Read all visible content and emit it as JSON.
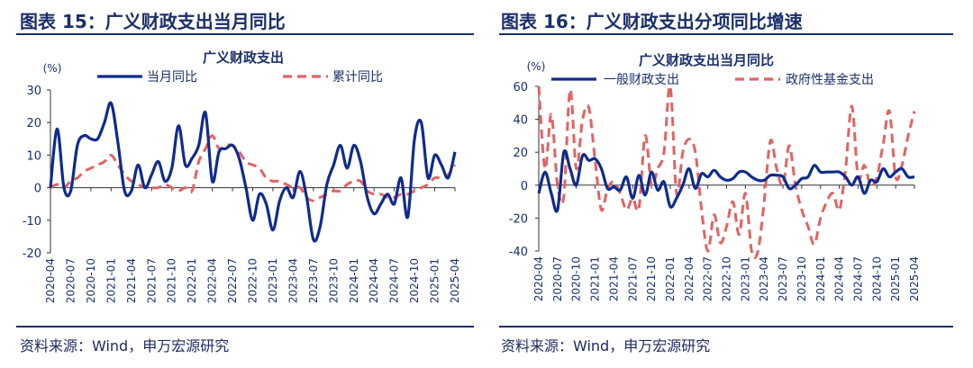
{
  "figures": [
    {
      "title": "图表 15：广义财政支出当月同比",
      "source": "资料来源：Wind，申万宏源研究"
    },
    {
      "title": "图表 16：广义财政支出分项同比增速",
      "source": "资料来源：Wind，申万宏源研究"
    }
  ],
  "colors": {
    "navy": "#0f2b8c",
    "red": "#e06464",
    "text": "#1a2f6b"
  },
  "chart_data": [
    {
      "type": "line",
      "title": "广义财政支出",
      "unit_label": "(%)",
      "ylim": [
        -20,
        30
      ],
      "yticks": [
        -20,
        -10,
        0,
        10,
        20,
        30
      ],
      "xlim": [
        "2020-04",
        "2025-04"
      ],
      "x_tick_labels": [
        "2020-04",
        "2020-07",
        "2020-10",
        "2021-01",
        "2021-04",
        "2021-07",
        "2021-10",
        "2022-01",
        "2022-04",
        "2022-07",
        "2022-10",
        "2023-01",
        "2023-04",
        "2023-07",
        "2023-10",
        "2024-01",
        "2024-04",
        "2024-07",
        "2024-10",
        "2025-01",
        "2025-04"
      ],
      "legend_position": "top",
      "series": [
        {
          "name": "当月同比",
          "color": "#0f2b8c",
          "style": "solid",
          "x": [
            "2020-04",
            "2020-05",
            "2020-06",
            "2020-07",
            "2020-08",
            "2020-09",
            "2020-10",
            "2020-11",
            "2020-12",
            "2021-01",
            "2021-02",
            "2021-03",
            "2021-04",
            "2021-05",
            "2021-06",
            "2021-07",
            "2021-08",
            "2021-09",
            "2021-10",
            "2021-11",
            "2021-12",
            "2022-01",
            "2022-02",
            "2022-03",
            "2022-04",
            "2022-05",
            "2022-06",
            "2022-07",
            "2022-08",
            "2022-09",
            "2022-10",
            "2022-11",
            "2022-12",
            "2023-01",
            "2023-02",
            "2023-03",
            "2023-04",
            "2023-05",
            "2023-06",
            "2023-07",
            "2023-08",
            "2023-09",
            "2023-10",
            "2023-11",
            "2023-12",
            "2024-01",
            "2024-02",
            "2024-03",
            "2024-04",
            "2024-05",
            "2024-06",
            "2024-07",
            "2024-08",
            "2024-09",
            "2024-10",
            "2024-11",
            "2024-12",
            "2025-01",
            "2025-02",
            "2025-03",
            "2025-04"
          ],
          "values": [
            0,
            18,
            0,
            -1,
            13,
            16,
            15,
            15,
            20,
            26,
            14,
            -1,
            -1,
            7,
            0,
            4,
            8,
            2,
            6,
            19,
            7,
            9,
            13,
            23,
            2,
            11,
            12,
            13,
            9,
            0,
            -10,
            -2,
            -5,
            -13,
            -4,
            0,
            -3,
            5,
            -3,
            -16,
            -12,
            1,
            7,
            13,
            6,
            13,
            8,
            -3,
            -8,
            -5,
            -2,
            -5,
            3,
            -9,
            15,
            20,
            3,
            10,
            7,
            3,
            11
          ]
        },
        {
          "name": "累计同比",
          "color": "#e06464",
          "style": "dashed",
          "x": [
            "2020-04",
            "2020-05",
            "2020-06",
            "2020-07",
            "2020-08",
            "2020-09",
            "2020-10",
            "2020-11",
            "2020-12",
            "2021-01",
            "2021-02",
            "2021-03",
            "2021-04",
            "2021-05",
            "2021-06",
            "2021-07",
            "2021-08",
            "2021-09",
            "2021-10",
            "2021-11",
            "2021-12",
            "2022-01",
            "2022-02",
            "2022-03",
            "2022-04",
            "2022-05",
            "2022-06",
            "2022-07",
            "2022-08",
            "2022-09",
            "2022-10",
            "2022-11",
            "2022-12",
            "2023-01",
            "2023-02",
            "2023-03",
            "2023-04",
            "2023-05",
            "2023-06",
            "2023-07",
            "2023-08",
            "2023-09",
            "2023-10",
            "2023-11",
            "2023-12",
            "2024-01",
            "2024-02",
            "2024-03",
            "2024-04",
            "2024-05",
            "2024-06",
            "2024-07",
            "2024-08",
            "2024-09",
            "2024-10",
            "2024-11",
            "2024-12",
            "2025-01",
            "2025-02",
            "2025-03",
            "2025-04"
          ],
          "values": [
            0,
            1,
            0,
            2,
            3,
            5,
            6,
            7,
            8,
            10,
            7,
            4,
            2,
            1,
            0,
            0,
            0,
            1,
            0,
            -1,
            0,
            -1,
            8,
            12,
            16,
            12,
            13,
            13,
            11,
            8,
            7,
            6,
            3,
            2,
            2,
            1,
            0,
            0,
            -3,
            -4,
            -3,
            -2,
            -1,
            -1,
            1,
            2,
            2,
            -1,
            -2,
            -2,
            -3,
            -3,
            -2,
            -2,
            -1,
            0,
            1,
            3,
            3,
            4,
            7
          ]
        }
      ]
    },
    {
      "type": "line",
      "title": "广义财政支出当月同比",
      "unit_label": "(%)",
      "ylim": [
        -40,
        60
      ],
      "yticks": [
        -40,
        -20,
        0,
        20,
        40,
        60
      ],
      "xlim": [
        "2020-04",
        "2025-04"
      ],
      "x_tick_labels": [
        "2020-04",
        "2020-07",
        "2020-10",
        "2021-01",
        "2021-04",
        "2021-07",
        "2021-10",
        "2022-01",
        "2022-04",
        "2022-07",
        "2022-10",
        "2023-01",
        "2023-04",
        "2023-07",
        "2023-10",
        "2024-01",
        "2024-04",
        "2024-07",
        "2024-10",
        "2025-01",
        "2025-04"
      ],
      "legend_position": "top",
      "series": [
        {
          "name": "一般财政支出",
          "color": "#0f2b8c",
          "style": "solid",
          "x": [
            "2020-04",
            "2020-05",
            "2020-06",
            "2020-07",
            "2020-08",
            "2020-09",
            "2020-10",
            "2020-11",
            "2020-12",
            "2021-01",
            "2021-02",
            "2021-03",
            "2021-04",
            "2021-05",
            "2021-06",
            "2021-07",
            "2021-08",
            "2021-09",
            "2021-10",
            "2021-11",
            "2021-12",
            "2022-01",
            "2022-02",
            "2022-03",
            "2022-04",
            "2022-05",
            "2022-06",
            "2022-07",
            "2022-08",
            "2022-09",
            "2022-10",
            "2022-11",
            "2022-12",
            "2023-01",
            "2023-02",
            "2023-03",
            "2023-04",
            "2023-05",
            "2023-06",
            "2023-07",
            "2023-08",
            "2023-09",
            "2023-10",
            "2023-11",
            "2023-12",
            "2024-01",
            "2024-02",
            "2024-03",
            "2024-04",
            "2024-05",
            "2024-06",
            "2024-07",
            "2024-08",
            "2024-09",
            "2024-10",
            "2024-11",
            "2024-12",
            "2025-01",
            "2025-02",
            "2025-03",
            "2025-04"
          ],
          "values": [
            -5,
            8,
            -5,
            -15,
            20,
            10,
            0,
            18,
            15,
            16,
            10,
            -2,
            -1,
            -3,
            5,
            -8,
            6,
            -6,
            8,
            -3,
            2,
            -13,
            -8,
            0,
            10,
            -2,
            7,
            5,
            9,
            5,
            3,
            4,
            8,
            8,
            5,
            3,
            3,
            6,
            6,
            5,
            -2,
            0,
            4,
            5,
            12,
            8,
            8,
            8,
            8,
            5,
            0,
            5,
            -5,
            3,
            2,
            10,
            5,
            8,
            10,
            5,
            5
          ]
        },
        {
          "name": "政府性基金支出",
          "color": "#e06464",
          "style": "dashed",
          "x": [
            "2020-04",
            "2020-05",
            "2020-06",
            "2020-07",
            "2020-08",
            "2020-09",
            "2020-10",
            "2020-11",
            "2020-12",
            "2021-01",
            "2021-02",
            "2021-03",
            "2021-04",
            "2021-05",
            "2021-06",
            "2021-07",
            "2021-08",
            "2021-09",
            "2021-10",
            "2021-11",
            "2021-12",
            "2022-01",
            "2022-02",
            "2022-03",
            "2022-04",
            "2022-05",
            "2022-06",
            "2022-07",
            "2022-08",
            "2022-09",
            "2022-10",
            "2022-11",
            "2022-12",
            "2023-01",
            "2023-02",
            "2023-03",
            "2023-04",
            "2023-05",
            "2023-06",
            "2023-07",
            "2023-08",
            "2023-09",
            "2023-10",
            "2023-11",
            "2023-12",
            "2024-01",
            "2024-02",
            "2024-03",
            "2024-04",
            "2024-05",
            "2024-06",
            "2024-07",
            "2024-08",
            "2024-09",
            "2024-10",
            "2024-11",
            "2024-12",
            "2025-01",
            "2025-02",
            "2025-03",
            "2025-04"
          ],
          "values": [
            60,
            10,
            43,
            0,
            -7,
            58,
            10,
            40,
            47,
            15,
            -15,
            -2,
            2,
            -5,
            -15,
            -8,
            -14,
            30,
            0,
            10,
            20,
            60,
            -5,
            20,
            28,
            20,
            -15,
            -40,
            -18,
            -35,
            -25,
            -10,
            -30,
            -5,
            -40,
            -40,
            -10,
            27,
            10,
            0,
            24,
            0,
            -15,
            -25,
            -36,
            -20,
            -10,
            -5,
            -15,
            10,
            48,
            5,
            12,
            0,
            5,
            25,
            45,
            5,
            12,
            30,
            45
          ]
        }
      ]
    }
  ]
}
